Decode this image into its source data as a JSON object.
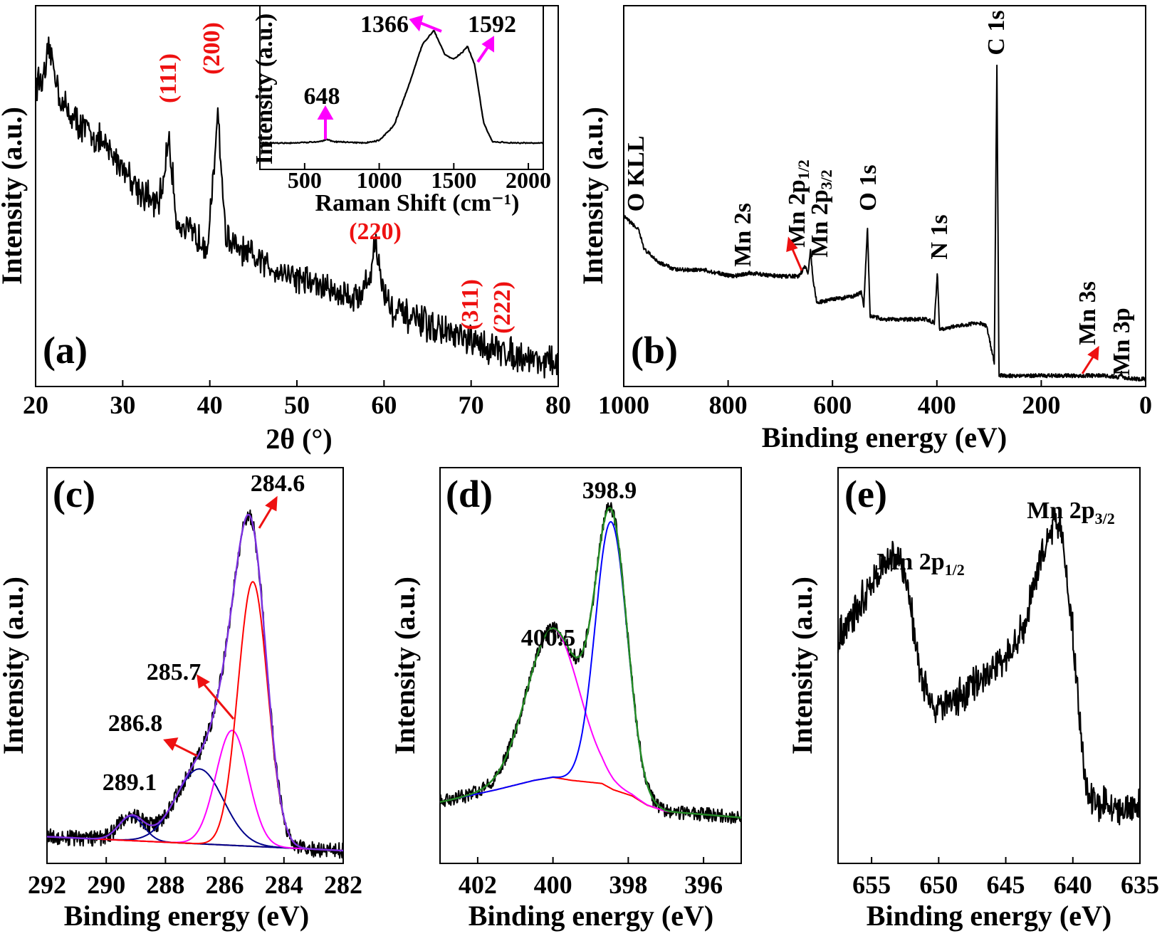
{
  "colors": {
    "data": "#000000",
    "axis": "#000000",
    "hkl_label": "#ee1111",
    "arrow_red": "#ee1111",
    "arrow_magenta": "#ff00ff",
    "fit_red": "#ff0000",
    "fit_magenta": "#ff00ff",
    "fit_navy": "#00008b",
    "fit_blue": "#0000ff",
    "fit_green": "#228b22",
    "fit_purple": "#7b2fe0",
    "baseline_brown": "#8b1a1a"
  },
  "chart_data": [
    {
      "id": "a",
      "panel_label": "(a)",
      "type": "line",
      "xlabel": "2θ (°)",
      "ylabel": "Intensity (a.u.)",
      "xlim": [
        20,
        80
      ],
      "xticks": [
        "20",
        "30",
        "40",
        "50",
        "60",
        "70",
        "80"
      ],
      "ylim": [
        0,
        1
      ],
      "series": [
        {
          "noise": 0.035,
          "values": [
            [
              20,
              0.86
            ],
            [
              21,
              0.87
            ],
            [
              21.6,
              0.96
            ],
            [
              23,
              0.8
            ],
            [
              25,
              0.74
            ],
            [
              27,
              0.7
            ],
            [
              30,
              0.62
            ],
            [
              32,
              0.55
            ],
            [
              34,
              0.5
            ],
            [
              34.7,
              0.58
            ],
            [
              35.2,
              0.7
            ],
            [
              35.6,
              0.62
            ],
            [
              36.2,
              0.46
            ],
            [
              38,
              0.42
            ],
            [
              39.8,
              0.4
            ],
            [
              40.5,
              0.6
            ],
            [
              40.9,
              0.8
            ],
            [
              41.3,
              0.62
            ],
            [
              41.8,
              0.42
            ],
            [
              43,
              0.38
            ],
            [
              46,
              0.34
            ],
            [
              50,
              0.3
            ],
            [
              54,
              0.26
            ],
            [
              57,
              0.24
            ],
            [
              58.4,
              0.3
            ],
            [
              59,
              0.41
            ],
            [
              59.7,
              0.28
            ],
            [
              61,
              0.2
            ],
            [
              64,
              0.17
            ],
            [
              67,
              0.14
            ],
            [
              70,
              0.11
            ],
            [
              73,
              0.09
            ],
            [
              76,
              0.07
            ],
            [
              80,
              0.05
            ]
          ]
        }
      ],
      "annotations": [
        {
          "text": "(111)",
          "x": 35.2,
          "rot": -90,
          "color": "red"
        },
        {
          "text": "(200)",
          "x": 40.8,
          "rot": -90,
          "color": "red"
        },
        {
          "text": "(220)",
          "x": 59.0,
          "rot": 0,
          "color": "red"
        },
        {
          "text": "(311)",
          "x": 70.5,
          "rot": -90,
          "color": "red"
        },
        {
          "text": "(222)",
          "x": 74.3,
          "rot": -90,
          "color": "red"
        }
      ],
      "inset": {
        "type": "line",
        "xlabel": "Raman Shift (cm⁻¹)",
        "ylabel": "Intensity (a.u.)",
        "xlim": [
          200,
          2100
        ],
        "xticks": [
          "500",
          "1000",
          "1500",
          "2000"
        ],
        "ylim": [
          0,
          1
        ],
        "series": [
          {
            "noise": 0.004,
            "values": [
              [
                200,
                0.04
              ],
              [
                400,
                0.04
              ],
              [
                600,
                0.05
              ],
              [
                648,
                0.07
              ],
              [
                700,
                0.05
              ],
              [
                900,
                0.04
              ],
              [
                1000,
                0.06
              ],
              [
                1100,
                0.18
              ],
              [
                1200,
                0.5
              ],
              [
                1290,
                0.82
              ],
              [
                1366,
                0.93
              ],
              [
                1440,
                0.74
              ],
              [
                1500,
                0.7
              ],
              [
                1560,
                0.76
              ],
              [
                1592,
                0.8
              ],
              [
                1640,
                0.66
              ],
              [
                1700,
                0.2
              ],
              [
                1760,
                0.05
              ],
              [
                1900,
                0.04
              ],
              [
                2100,
                0.04
              ]
            ]
          }
        ],
        "annotations": [
          {
            "text": "648",
            "x": 648
          },
          {
            "text": "1366",
            "x": 1366
          },
          {
            "text": "1592",
            "x": 1592
          }
        ]
      }
    },
    {
      "id": "b",
      "panel_label": "(b)",
      "type": "line",
      "xlabel": "Binding energy (eV)",
      "ylabel": "Intensity (a.u.)",
      "xlim": [
        1000,
        0
      ],
      "xticks": [
        "1000",
        "800",
        "600",
        "400",
        "200",
        "0"
      ],
      "ylim": [
        0,
        1
      ],
      "series": [
        {
          "noise": 0.006,
          "values": [
            [
              1000,
              0.5
            ],
            [
              985,
              0.48
            ],
            [
              978,
              0.47
            ],
            [
              972,
              0.46
            ],
            [
              960,
              0.4
            ],
            [
              930,
              0.36
            ],
            [
              900,
              0.34
            ],
            [
              850,
              0.34
            ],
            [
              790,
              0.32
            ],
            [
              760,
              0.33
            ],
            [
              700,
              0.32
            ],
            [
              665,
              0.32
            ],
            [
              652,
              0.35
            ],
            [
              647,
              0.33
            ],
            [
              642,
              0.4
            ],
            [
              638,
              0.32
            ],
            [
              630,
              0.24
            ],
            [
              600,
              0.25
            ],
            [
              560,
              0.26
            ],
            [
              545,
              0.27
            ],
            [
              540,
              0.23
            ],
            [
              533,
              0.47
            ],
            [
              528,
              0.2
            ],
            [
              500,
              0.19
            ],
            [
              420,
              0.19
            ],
            [
              405,
              0.18
            ],
            [
              399,
              0.33
            ],
            [
              395,
              0.16
            ],
            [
              360,
              0.17
            ],
            [
              320,
              0.18
            ],
            [
              305,
              0.17
            ],
            [
              290,
              0.06
            ],
            [
              285,
              0.96
            ],
            [
              281,
              0.02
            ],
            [
              250,
              0.02
            ],
            [
              150,
              0.02
            ],
            [
              100,
              0.02
            ],
            [
              85,
              0.02
            ],
            [
              50,
              0.015
            ],
            [
              47,
              0.03
            ],
            [
              44,
              0.015
            ],
            [
              20,
              0.01
            ],
            [
              0,
              0.01
            ]
          ]
        }
      ],
      "annotations": [
        {
          "text": "O KLL",
          "x": 975
        },
        {
          "text": "Mn 2s",
          "x": 770
        },
        {
          "text": "Mn 2p",
          "sub": "1/2",
          "x": 655
        },
        {
          "text": "Mn 2p",
          "sub": "3/2",
          "x": 641
        },
        {
          "text": "O 1s",
          "x": 531
        },
        {
          "text": "N 1s",
          "x": 399
        },
        {
          "text": "C 1s",
          "x": 284.6
        },
        {
          "text": "Mn 3s",
          "x": 84
        },
        {
          "text": "Mn 3p",
          "x": 48
        }
      ]
    },
    {
      "id": "c",
      "panel_label": "(c)",
      "type": "line",
      "xlabel": "Binding energy (eV)",
      "ylabel": "Intensity (a.u.)",
      "xlim": [
        292,
        282
      ],
      "xticks": [
        "292",
        "290",
        "288",
        "286",
        "284",
        "282"
      ],
      "ylim": [
        0,
        1.1
      ],
      "baseline": [
        [
          292,
          0.04
        ],
        [
          282,
          0.0
        ]
      ],
      "peaks": [
        {
          "name": "289.1",
          "center": 289.15,
          "height": 0.07,
          "sigma": 0.42,
          "color": "navy"
        },
        {
          "name": "286.8",
          "center": 286.85,
          "height": 0.215,
          "sigma": 0.8,
          "color": "navy"
        },
        {
          "name": "285.7",
          "center": 285.75,
          "height": 0.33,
          "sigma": 0.55,
          "color": "magenta"
        },
        {
          "name": "284.6",
          "center": 285.05,
          "height": 0.76,
          "sigma": 0.5,
          "color": "red"
        }
      ],
      "annotations": [
        {
          "text": "289.1",
          "x": 289.1
        },
        {
          "text": "286.8",
          "x": 286.8
        },
        {
          "text": "285.7",
          "x": 285.7
        },
        {
          "text": "284.6",
          "x": 284.6
        }
      ]
    },
    {
      "id": "d",
      "panel_label": "(d)",
      "type": "line",
      "xlabel": "Binding energy (eV)",
      "ylabel": "Intensity (a.u.)",
      "xlim": [
        403,
        395
      ],
      "xticks": [
        "402",
        "400",
        "398",
        "396"
      ],
      "ylim": [
        0,
        1.12
      ],
      "baseline": [
        [
          403,
          0.06
        ],
        [
          401.5,
          0.1
        ],
        [
          400.5,
          0.13
        ],
        [
          400,
          0.14
        ],
        [
          399.5,
          0.13
        ],
        [
          398.7,
          0.12
        ],
        [
          398.4,
          0.1
        ],
        [
          397.9,
          0.08
        ],
        [
          397.5,
          0.05
        ],
        [
          397,
          0.03
        ],
        [
          396,
          0.02
        ],
        [
          395,
          0.01
        ]
      ],
      "peaks": [
        {
          "name": "400.5",
          "center": 400.0,
          "height": 0.48,
          "sigma": 0.7,
          "color": "magenta"
        },
        {
          "name": "398.9",
          "center": 398.45,
          "height": 0.86,
          "sigma": 0.42,
          "color": "blue"
        }
      ],
      "annotations": [
        {
          "text": "400.5",
          "x": 400.0
        },
        {
          "text": "398.9",
          "x": 398.45
        }
      ]
    },
    {
      "id": "e",
      "panel_label": "(e)",
      "type": "line",
      "xlabel": "Binding energy (eV)",
      "ylabel": "Intensity (a.u.)",
      "xlim": [
        657.5,
        635
      ],
      "xticks": [
        "655",
        "650",
        "645",
        "640",
        "635"
      ],
      "ylim": [
        0,
        1
      ],
      "series": [
        {
          "noise": 0.035,
          "values": [
            [
              657.5,
              0.55
            ],
            [
              656,
              0.63
            ],
            [
              654.5,
              0.73
            ],
            [
              653.4,
              0.77
            ],
            [
              652.5,
              0.74
            ],
            [
              651.5,
              0.48
            ],
            [
              650.5,
              0.35
            ],
            [
              649,
              0.37
            ],
            [
              647,
              0.42
            ],
            [
              645,
              0.5
            ],
            [
              643.5,
              0.59
            ],
            [
              642.5,
              0.75
            ],
            [
              641.5,
              0.86
            ],
            [
              641,
              0.87
            ],
            [
              640.5,
              0.74
            ],
            [
              640,
              0.56
            ],
            [
              639.5,
              0.32
            ],
            [
              639,
              0.12
            ],
            [
              638,
              0.09
            ],
            [
              636.5,
              0.07
            ],
            [
              635,
              0.08
            ]
          ]
        }
      ],
      "annotations": [
        {
          "text": "Mn 2p",
          "sub": "1/2",
          "x": 653.4
        },
        {
          "text": "Mn 2p",
          "sub": "3/2",
          "x": 641.2
        }
      ]
    }
  ]
}
